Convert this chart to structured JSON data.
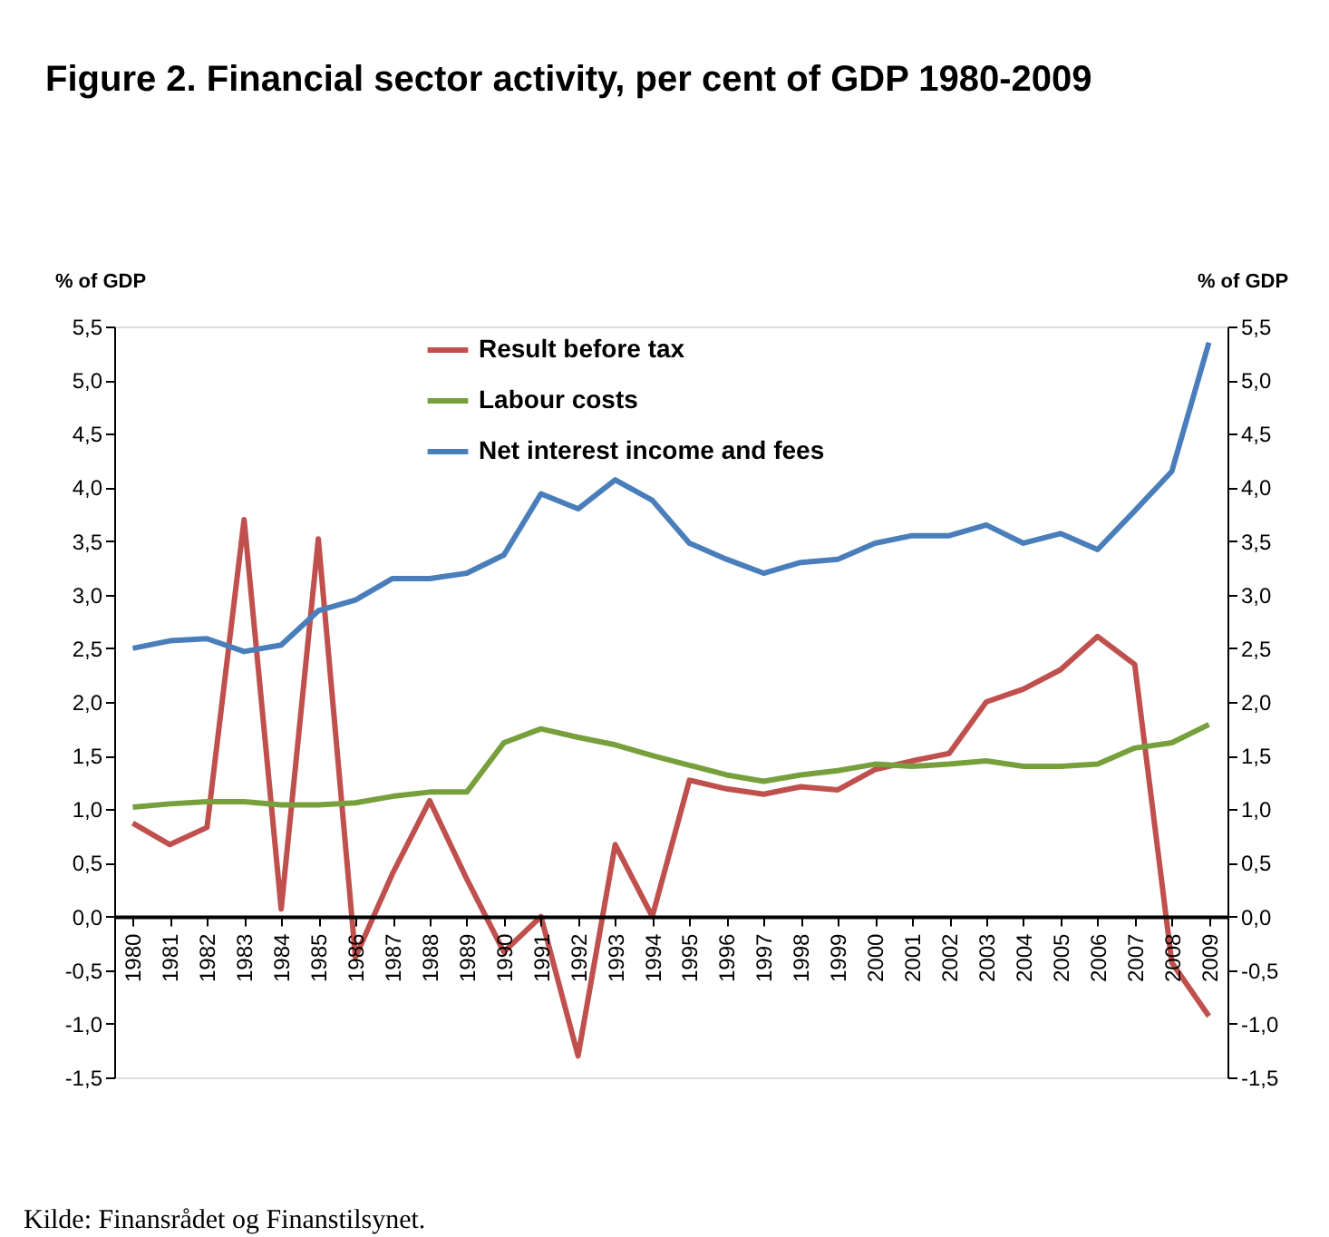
{
  "chart_data": {
    "type": "line",
    "title": "Figure 2. Financial sector activity, per cent of GDP 1980-2009",
    "ylabel": "% of GDP",
    "y2label": "% of GDP",
    "categories": [
      "1980",
      "1981",
      "1982",
      "1983",
      "1984",
      "1985",
      "1986",
      "1987",
      "1988",
      "1989",
      "1990",
      "1991",
      "1992",
      "1993",
      "1994",
      "1995",
      "1996",
      "1997",
      "1998",
      "1999",
      "2000",
      "2001",
      "2002",
      "2003",
      "2004",
      "2005",
      "2006",
      "2007",
      "2008",
      "2009"
    ],
    "series": [
      {
        "name": "Result before tax",
        "color": "#c0504d",
        "values": [
          0.87,
          0.67,
          0.83,
          3.7,
          0.07,
          3.52,
          -0.38,
          0.4,
          1.08,
          0.35,
          -0.33,
          0,
          -1.3,
          0.67,
          0,
          1.27,
          1.19,
          1.14,
          1.21,
          1.18,
          1.37,
          1.45,
          1.52,
          2.0,
          2.12,
          2.3,
          2.61,
          2.35,
          -0.43,
          -0.93
        ]
      },
      {
        "name": "Labour costs",
        "color": "#77a03c",
        "values": [
          1.02,
          1.05,
          1.07,
          1.07,
          1.04,
          1.04,
          1.06,
          1.12,
          1.16,
          1.16,
          1.62,
          1.75,
          1.67,
          1.6,
          1.5,
          1.41,
          1.32,
          1.26,
          1.32,
          1.36,
          1.42,
          1.4,
          1.42,
          1.45,
          1.4,
          1.4,
          1.42,
          1.57,
          1.62,
          1.79
        ]
      },
      {
        "name": "Net interest income and fees",
        "color": "#4a7ebb",
        "values": [
          2.5,
          2.57,
          2.59,
          2.47,
          2.53,
          2.85,
          2.95,
          3.15,
          3.15,
          3.2,
          3.37,
          3.94,
          3.8,
          4.07,
          3.88,
          3.48,
          3.33,
          3.2,
          3.3,
          3.33,
          3.48,
          3.55,
          3.55,
          3.65,
          3.48,
          3.57,
          3.42,
          3.78,
          4.15,
          5.35
        ]
      }
    ],
    "ylim": [
      -1.5,
      5.5
    ],
    "yticks": [
      {
        "value": -1.5,
        "label": "-1,5"
      },
      {
        "value": -1,
        "label": "-1,0"
      },
      {
        "value": -0.5,
        "label": "-0,5"
      },
      {
        "value": 0,
        "label": "0,0"
      },
      {
        "value": 0.5,
        "label": "0,5"
      },
      {
        "value": 1,
        "label": "1,0"
      },
      {
        "value": 1.5,
        "label": "1,5"
      },
      {
        "value": 2,
        "label": "2,0"
      },
      {
        "value": 2.5,
        "label": "2,5"
      },
      {
        "value": 3,
        "label": "3,0"
      },
      {
        "value": 3.5,
        "label": "3,5"
      },
      {
        "value": 4,
        "label": "4,0"
      },
      {
        "value": 4.5,
        "label": "4,5"
      },
      {
        "value": 5,
        "label": "5,0"
      },
      {
        "value": 5.5,
        "label": "5,5"
      }
    ],
    "y2lim": [
      -1.5,
      5.5
    ],
    "y2ticks": [
      {
        "value": -1.5,
        "label": "-1,5"
      },
      {
        "value": -1,
        "label": "-1,0"
      },
      {
        "value": -0.5,
        "label": "-0,5"
      },
      {
        "value": 0,
        "label": "0,0"
      },
      {
        "value": 0.5,
        "label": "0,5"
      },
      {
        "value": 1,
        "label": "1,0"
      },
      {
        "value": 1.5,
        "label": "1,5"
      },
      {
        "value": 2,
        "label": "2,0"
      },
      {
        "value": 2.5,
        "label": "2,5"
      },
      {
        "value": 3,
        "label": "3,0"
      },
      {
        "value": 3.5,
        "label": "3,5"
      },
      {
        "value": 4,
        "label": "4,0"
      },
      {
        "value": 4.5,
        "label": "4,5"
      },
      {
        "value": 5,
        "label": "5,0"
      },
      {
        "value": 5.5,
        "label": "5,5"
      }
    ],
    "grid": false,
    "legend": "top",
    "marker": "none",
    "line_style": "solid",
    "annotations": [
      "Kilde: Finansrådet og Finanstilsynet."
    ]
  }
}
